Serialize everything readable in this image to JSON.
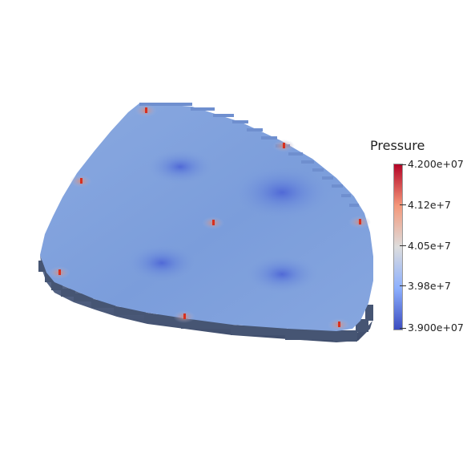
{
  "legend": {
    "title": "Pressure",
    "ticks": [
      "4.200e+07",
      "4.12e+7",
      "4.05e+7",
      "3.98e+7",
      "3.900e+07"
    ],
    "colors": {
      "high": "#b40426",
      "upper_mid": "#f4987a",
      "mid": "#dddddd",
      "lower_mid": "#8db0fe",
      "low": "#3b4cc0"
    }
  },
  "model": {
    "surface_color": "#7d9fdc",
    "side_color": "#4b5a7a",
    "well_color": "#d7301f"
  }
}
